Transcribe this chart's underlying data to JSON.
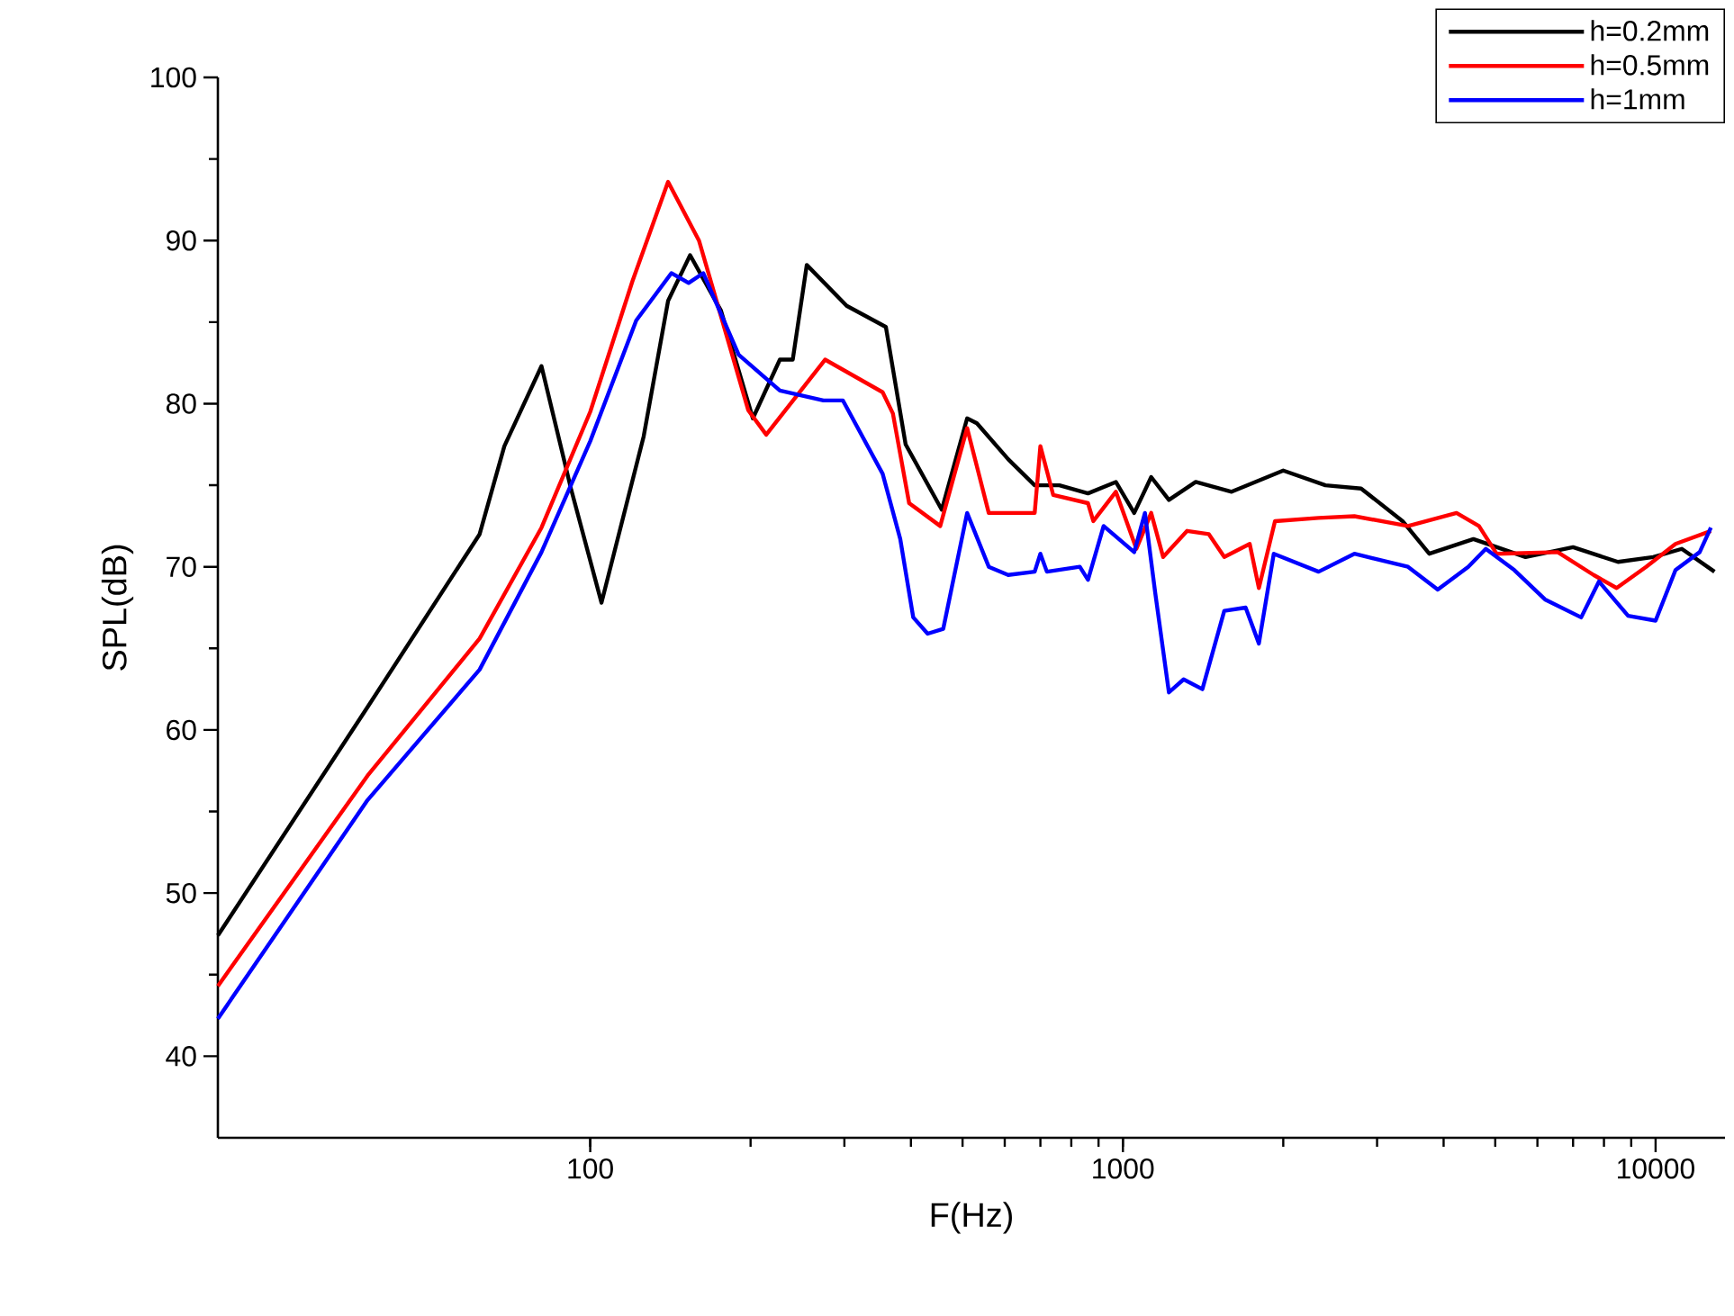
{
  "chart_data": {
    "type": "line",
    "xlabel": "F(Hz)",
    "ylabel": "SPL(dB)",
    "log": "x",
    "xlim": [
      20,
      13500
    ],
    "xticks": [
      100,
      1000,
      10000
    ],
    "ylim": [
      35,
      100
    ],
    "yticks": [
      40,
      50,
      60,
      70,
      80,
      90,
      100
    ],
    "legend": "top right",
    "series": [
      {
        "name": "h=0.2mm",
        "color": "#000000",
        "x": [
          20,
          38.2,
          62,
          69,
          81,
          92,
          105,
          126,
          140,
          154,
          176,
          202,
          227,
          240,
          255,
          303,
          359,
          391,
          457,
          510,
          532,
          609,
          683,
          760,
          860,
          970,
          1050,
          1130,
          1220,
          1370,
          1600,
          2000,
          2400,
          2800,
          3350,
          3760,
          4550,
          5700,
          7000,
          8500,
          9900,
          11200,
          12900
        ],
        "values": [
          47.4,
          61.4,
          72.0,
          77.4,
          82.3,
          74.8,
          67.8,
          78.0,
          86.3,
          89.1,
          85.7,
          79.1,
          82.7,
          82.7,
          88.5,
          86.0,
          84.7,
          77.5,
          73.5,
          79.1,
          78.8,
          76.6,
          75.0,
          75.0,
          74.5,
          75.2,
          73.3,
          75.5,
          74.1,
          75.2,
          74.6,
          75.9,
          75.0,
          74.8,
          72.8,
          70.8,
          71.7,
          70.6,
          71.2,
          70.3,
          70.6,
          71.1,
          69.7
        ]
      },
      {
        "name": "h=0.5mm",
        "color": "#ff0000",
        "x": [
          20,
          38.2,
          62,
          81,
          100,
          120,
          140,
          160,
          198,
          214,
          276,
          354,
          370,
          397,
          454,
          510,
          560,
          683,
          700,
          740,
          860,
          880,
          970,
          1060,
          1130,
          1190,
          1320,
          1450,
          1550,
          1730,
          1800,
          1930,
          2330,
          2720,
          3430,
          4230,
          4660,
          5030,
          6550,
          7650,
          8450,
          9600,
          10900,
          12700
        ],
        "values": [
          44.3,
          57.2,
          65.6,
          72.4,
          79.5,
          87.5,
          93.6,
          90.0,
          79.6,
          78.1,
          82.7,
          80.7,
          79.4,
          73.9,
          72.5,
          78.5,
          73.3,
          73.3,
          77.4,
          74.4,
          73.9,
          72.8,
          74.6,
          71.1,
          73.3,
          70.6,
          72.2,
          72.0,
          70.6,
          71.4,
          68.7,
          72.8,
          73.0,
          73.1,
          72.5,
          73.3,
          72.5,
          70.8,
          70.9,
          69.5,
          68.7,
          70.0,
          71.4,
          72.2
        ]
      },
      {
        "name": "h=1mm",
        "color": "#0000ff",
        "x": [
          20,
          38.2,
          62,
          81,
          100,
          122,
          142,
          153,
          163,
          190,
          227,
          274,
          298,
          354,
          382,
          404,
          430,
          460,
          510,
          560,
          609,
          683,
          700,
          720,
          830,
          860,
          920,
          1050,
          1100,
          1150,
          1220,
          1300,
          1410,
          1550,
          1700,
          1800,
          1920,
          2330,
          2720,
          3430,
          3900,
          4450,
          4800,
          5430,
          6200,
          7250,
          7830,
          8880,
          10000,
          10900,
          12100,
          12700
        ],
        "values": [
          42.3,
          55.7,
          63.7,
          70.9,
          77.7,
          85.1,
          88.0,
          87.4,
          88.0,
          83.0,
          80.8,
          80.2,
          80.2,
          75.7,
          71.7,
          66.9,
          65.9,
          66.2,
          73.3,
          70.0,
          69.5,
          69.7,
          70.8,
          69.7,
          70.0,
          69.2,
          72.5,
          70.9,
          73.3,
          68.4,
          62.3,
          63.1,
          62.5,
          67.3,
          67.5,
          65.3,
          70.8,
          69.7,
          70.8,
          70.0,
          68.6,
          70.0,
          71.1,
          69.8,
          68.0,
          66.9,
          69.1,
          67.0,
          66.7,
          69.8,
          70.9,
          72.4
        ]
      }
    ]
  }
}
